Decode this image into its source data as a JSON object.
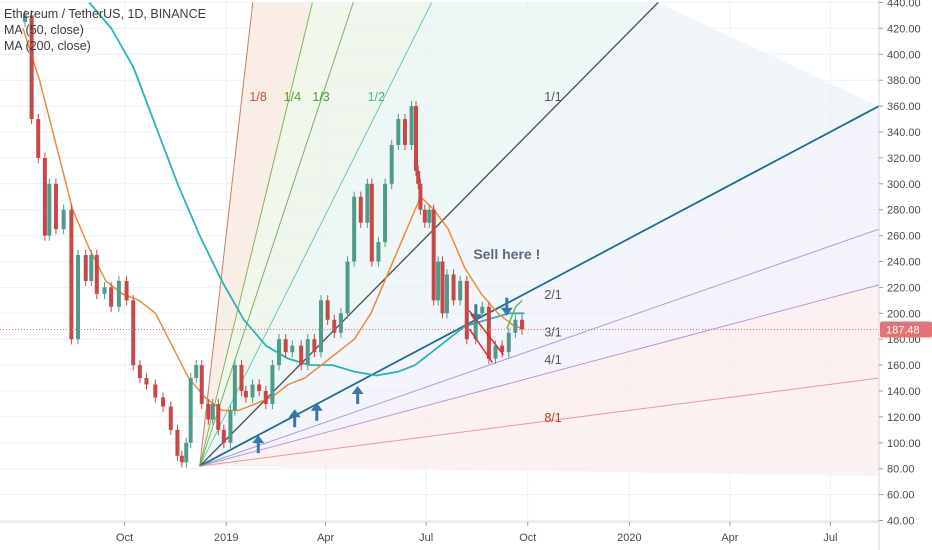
{
  "legend": {
    "symbol": "Ethereum / TetherUS, 1D, BINANCE",
    "ma50": "MA (50, close)",
    "ma200": "MA (200, close)"
  },
  "chart_data": {
    "type": "line",
    "title": "Ethereum / TetherUS, 1D, BINANCE",
    "xlabel": "",
    "ylabel": "",
    "ylim": [
      40,
      440
    ],
    "y_ticks": [
      "40.00",
      "60.00",
      "80.00",
      "100.00",
      "120.00",
      "140.00",
      "160.00",
      "180.00",
      "200.00",
      "220.00",
      "240.00",
      "260.00",
      "280.00",
      "300.00",
      "320.00",
      "340.00",
      "360.00",
      "380.00",
      "400.00",
      "420.00",
      "440.00"
    ],
    "x_ticks": [
      {
        "label": "Oct",
        "t": 92
      },
      {
        "label": "2019",
        "t": 184
      },
      {
        "label": "Apr",
        "t": 274
      },
      {
        "label": "Jul",
        "t": 365
      },
      {
        "label": "Oct",
        "t": 457
      },
      {
        "label": "2020",
        "t": 549
      },
      {
        "label": "Apr",
        "t": 640
      },
      {
        "label": "Jul",
        "t": 731
      }
    ],
    "x_range": [
      0,
      775
    ],
    "current_price": "187.48",
    "current_price_value": 187.48,
    "price_series": {
      "name": "ETH/USDT",
      "t": [
        0,
        6,
        12,
        18,
        22,
        28,
        35,
        42,
        48,
        55,
        60,
        65,
        72,
        78,
        85,
        92,
        98,
        104,
        110,
        118,
        125,
        132,
        138,
        142,
        146,
        150,
        155,
        160,
        166,
        170,
        175,
        180,
        186,
        190,
        196,
        200,
        206,
        212,
        218,
        224,
        230,
        236,
        242,
        250,
        256,
        262,
        268,
        274,
        280,
        286,
        292,
        298,
        304,
        310,
        314,
        320,
        326,
        332,
        338,
        344,
        350,
        354,
        356,
        358,
        362,
        366,
        370,
        374,
        378,
        382,
        388,
        394,
        400,
        408,
        414,
        420,
        426,
        432,
        438,
        444,
        450,
        454
      ],
      "values": [
        425,
        430,
        350,
        320,
        260,
        300,
        265,
        280,
        180,
        245,
        225,
        245,
        215,
        220,
        205,
        225,
        210,
        160,
        150,
        145,
        135,
        128,
        110,
        90,
        85,
        100,
        150,
        160,
        130,
        118,
        130,
        110,
        100,
        125,
        160,
        140,
        135,
        145,
        140,
        130,
        160,
        180,
        170,
        175,
        160,
        180,
        170,
        210,
        195,
        185,
        200,
        240,
        290,
        270,
        300,
        240,
        255,
        300,
        330,
        350,
        330,
        360,
        310,
        300,
        280,
        270,
        280,
        210,
        240,
        200,
        230,
        210,
        225,
        180,
        200,
        205,
        165,
        175,
        170,
        185,
        195,
        187.48
      ]
    },
    "ma50_series": {
      "name": "MA (50, close)",
      "t": [
        0,
        15,
        30,
        45,
        60,
        75,
        90,
        105,
        120,
        135,
        150,
        165,
        180,
        195,
        210,
        225,
        240,
        255,
        270,
        285,
        300,
        315,
        330,
        345,
        360,
        372,
        385,
        400,
        415,
        430,
        445,
        454
      ],
      "values": [
        420,
        380,
        330,
        280,
        250,
        225,
        215,
        210,
        200,
        175,
        150,
        135,
        125,
        125,
        130,
        135,
        145,
        150,
        160,
        170,
        180,
        200,
        230,
        260,
        290,
        280,
        265,
        235,
        215,
        200,
        190,
        188
      ]
    },
    "ma200_series": {
      "name": "MA (200, close)",
      "t": [
        60,
        80,
        100,
        120,
        140,
        160,
        180,
        200,
        220,
        240,
        260,
        280,
        300,
        320,
        340,
        355,
        370,
        385,
        400,
        420,
        440,
        454
      ],
      "values": [
        440,
        420,
        390,
        345,
        300,
        260,
        225,
        195,
        175,
        165,
        160,
        160,
        155,
        152,
        155,
        160,
        170,
        180,
        190,
        195,
        200,
        200
      ]
    },
    "fan_origin": {
      "t": 160,
      "value": 82
    },
    "fan_lines": [
      {
        "label": "1/8",
        "end": {
          "t": 208,
          "value": 440
        },
        "color": "#b5553a"
      },
      {
        "label": "1/4",
        "end": {
          "t": 262,
          "value": 440
        },
        "color": "#5aa02c"
      },
      {
        "label": "1/3",
        "end": {
          "t": 299,
          "value": 440
        },
        "color": "#4f9a3a"
      },
      {
        "label": "1/2",
        "end": {
          "t": 370,
          "value": 440
        },
        "color": "#49b59a"
      },
      {
        "label": "1/1",
        "end": {
          "t": 575,
          "value": 440
        },
        "color": "#555555"
      },
      {
        "label": "2/1",
        "end": {
          "t": 775,
          "value": 360
        },
        "color": "#1f6f8b"
      },
      {
        "label": "3/1",
        "end": {
          "t": 775,
          "value": 265
        },
        "color": "#8a83c9"
      },
      {
        "label": "4/1",
        "end": {
          "t": 775,
          "value": 222
        },
        "color": "#9b7bd0"
      },
      {
        "label": "8/1",
        "end": {
          "t": 775,
          "value": 150
        },
        "color": "#e07b78"
      }
    ],
    "fan_labels": [
      {
        "label": "1/8",
        "t": 205,
        "value": 364,
        "color": "#b5553a"
      },
      {
        "label": "1/4",
        "t": 236,
        "value": 364,
        "color": "#5aa02c"
      },
      {
        "label": "1/3",
        "t": 262,
        "value": 364,
        "color": "#4f9a3a"
      },
      {
        "label": "1/2",
        "t": 312,
        "value": 364,
        "color": "#49b59a"
      },
      {
        "label": "1/1",
        "t": 472,
        "value": 364,
        "color": "#555555"
      },
      {
        "label": "2/1",
        "t": 472,
        "value": 211,
        "color": "#555555"
      },
      {
        "label": "3/1",
        "t": 472,
        "value": 182,
        "color": "#555555"
      },
      {
        "label": "4/1",
        "t": 472,
        "value": 161,
        "color": "#555555"
      },
      {
        "label": "8/1",
        "t": 472,
        "value": 116,
        "color": "#c0392b"
      }
    ],
    "annotations": [
      {
        "text": "Sell here !",
        "t": 438,
        "value": 242
      }
    ],
    "arrows_up": [
      {
        "t": 213,
        "value": 92
      },
      {
        "t": 246,
        "value": 112
      },
      {
        "t": 266,
        "value": 117
      },
      {
        "t": 303,
        "value": 130
      }
    ],
    "arrows_down": [
      {
        "t": 410,
        "value": 207
      },
      {
        "t": 438,
        "value": 212
      }
    ],
    "wedge": {
      "upper": [
        {
          "t": 404,
          "value": 202
        },
        {
          "t": 435,
          "value": 168
        }
      ],
      "lower": [
        {
          "t": 404,
          "value": 188
        },
        {
          "t": 425,
          "value": 162
        }
      ],
      "color": "#e0292c"
    },
    "projection": {
      "points": [
        {
          "t": 438,
          "value": 188
        },
        {
          "t": 446,
          "value": 205
        },
        {
          "t": 452,
          "value": 210
        }
      ],
      "color": "#5fbf4f"
    },
    "colors": {
      "ma50": "#f08a3b",
      "ma200": "#2ab5b6",
      "price_up": "#4f9a8a",
      "price_down": "#c94747",
      "price_line": "#e57373",
      "price_label_bg": "#e57373"
    }
  }
}
